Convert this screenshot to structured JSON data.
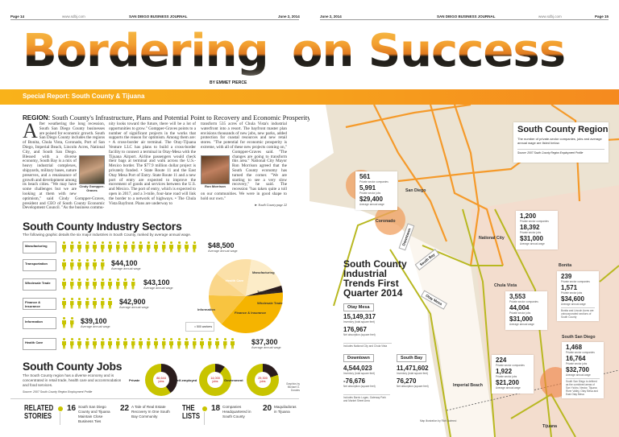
{
  "header_left": {
    "page": "Page 14",
    "url": "www.sdbj.com",
    "journal": "SAN DIEGO BUSINESS JOURNAL",
    "date": "June 2, 2014"
  },
  "header_right": {
    "date": "June 2, 2014",
    "journal": "SAN DIEGO BUSINESS JOURNAL",
    "url": "www.sdbj.com",
    "page": "Page 15"
  },
  "title_left": "Bordering",
  "title_right": "on Success",
  "byline": "BY EMMET PIERCE",
  "band": "Special Report: South County & Tijuana",
  "region": {
    "label": "REGION:",
    "text": "South County's Infrastructure, Plans and Potential Point to Recovery and Economic Prosperity"
  },
  "article": {
    "dropcap": "A",
    "col1": "fter weathering the long recession, South San Diego County businesses are poised for economic growth. South San Diego County includes the regions of Bonita, Chula Vista, Coronado, Port of San Diego, Imperial Beach, Lincoln Acres, National City, and South San Diego. Blessed with a diverse economy, South Bay is a mix of heavy industrial complexes, shipyards, military bases, nature preserves, and a renaissance of growth and development among its beach cities. \"We may have some challenges but we are looking at them with new optimism,\" said Cindy Gompper-Graves, president and CEO of South County Economic Development Council. \"As the business commu-",
    "col2": "nity looks toward the future, there will be a lot of opportunities to grow.\" Gompper-Graves points to a number of significant projects in the works that supports the reason for optimism. Among them are: • A cross-border air terminal. The Otay-Tijuana Venture LLC has plans to build a cross-border facility to connect a terminal in Otay-Mesa with the Tijuana Airport. Airline passengers would check their bags at terminal and walk across the U.S.-Mexico border. The $77.9 million dollar project is privately funded. • State Route 11 and the East Otay Mesa Port of Entry. State Route 11 and a new port of entry are expected to improve the movement of goods and services between the U.S. and Mexico. The port of entry, which is expected to open in 2017, and a 3-mile, four-lane road will link the border to a network of highways. • The Chula Vista Bayfront. Plans are underway to",
    "col3": "transform 535 acres of Chula Vista's industrial waterfront into a resort. The bayfront master plan envisions thousands of new jobs, new parks, added protection for coastal resources and new retail stores. \"The potential for economic prosperity is extreme, with all of these new projects coming on,\" Gompper-Graves said. \"The changes are going to transform this area.\" National City Mayor Ron Morrison agreed that the South County economy has turned the corner. \"We are starting to see a very slow recovery,\" he said. The recession \"has taken quite a toll on our communities. We were in good shape to hold our own.\"",
    "photo1_caption": "Cindy Gompper-Graves",
    "photo2_caption": "Ron Morrison",
    "jump": "South County page 22"
  },
  "sectors": {
    "title": "South County Industry Sectors",
    "subtitle": "The following graphic details the six major industries in South County, ranked by average annual wage.",
    "wage_label": "Average annual wage",
    "legend": "= 500 workers",
    "items": [
      {
        "name": "Manufacturing",
        "wage": "$48,500",
        "icons": 18
      },
      {
        "name": "Transportation",
        "wage": "$44,100",
        "icons": 6
      },
      {
        "name": "Wholesale Trade",
        "wage": "$43,100",
        "icons": 10
      },
      {
        "name": "Finance & Insurance",
        "wage": "$42,900",
        "icons": 7
      },
      {
        "name": "Information",
        "wage": "$39,100",
        "icons": 2
      },
      {
        "name": "Health Care",
        "wage": "$37,300",
        "icons": 23
      }
    ],
    "pie": [
      {
        "name": "Health Care",
        "pct": 38,
        "color": "#f5b400"
      },
      {
        "name": "Manufacturing",
        "pct": 14,
        "color": "#f8c440"
      },
      {
        "name": "Transportation",
        "pct": 10,
        "color": "#fad68a"
      },
      {
        "name": "Wholesale Trade",
        "pct": 17,
        "color": "#fbe0a8"
      },
      {
        "name": "Finance & Insurance",
        "pct": 18,
        "color": "#fcecc8"
      },
      {
        "name": "Information",
        "pct": 3,
        "color": "#2a1c1c"
      }
    ]
  },
  "jobs": {
    "title": "South County Jobs",
    "text": "The South County region has a diverse economy and is concentrated in retail trade, health care and accommodation and food services.",
    "source": "Source: 2007 South County Region Employment Profile",
    "donuts": [
      {
        "label": "Private",
        "value": "86,644",
        "unit": "jobs",
        "dark": 40
      },
      {
        "label": "Self-employed",
        "value": "14,000",
        "unit": "jobs",
        "dark": 10
      },
      {
        "label": "Government",
        "value": "29,300",
        "unit": "jobs",
        "dark": 20
      }
    ],
    "credit": "Graphics by Michael G. Dorales"
  },
  "related": {
    "title": "RELATED STORIES",
    "items": [
      {
        "page": "16",
        "text": "South San Diego County and Tijuana Maintain Close Business Ties"
      },
      {
        "page": "22",
        "text": "A Tale of Real Estate Recovery In One South Bay Community"
      }
    ]
  },
  "lists": {
    "title": "THE LISTS",
    "items": [
      {
        "page": "18",
        "text": "Companies Headquartered in South County"
      },
      {
        "page": "20",
        "text": "Maquiladoras in Tijuana"
      }
    ]
  },
  "map": {
    "title": "South County Region",
    "desc": "The number of private-sector companies, jobs and average annual wage are listed below.",
    "source": "Source: 2007 South County Region Employment Profile",
    "lbl_co": "Private sector companies",
    "lbl_jobs": "Private sector jobs",
    "lbl_wage": "Average annual wage",
    "san_diego": {
      "name": "San Diego",
      "companies": "561",
      "jobs": "5,991",
      "wage": "$29,400"
    },
    "national_city": {
      "name": "National City",
      "companies": "1,200",
      "jobs": "18,392",
      "wage": "$31,000"
    },
    "bonita": {
      "name": "Bonita",
      "companies": "239",
      "jobs": "1,571",
      "wage": "$34,600",
      "note": "Bonita and Lincoln Acres are unincorporated sections of South County"
    },
    "chula_vista": {
      "name": "Chula Vista",
      "companies": "3,553",
      "jobs": "44,004",
      "wage": "$31,000"
    },
    "south_san_diego": {
      "name": "South San Diego",
      "companies": "1,468",
      "jobs": "16,764",
      "wage": "$32,700",
      "note": "South San Diego is defined as the combined areas of San Ysidro, Nestor, Tijuana River Valley, Otay Mesa and East Otay Mesa"
    },
    "imperial_beach": {
      "name": "Imperial Beach",
      "companies": "224",
      "jobs": "1,922",
      "wage": "$21,200"
    },
    "coronado": "Coronado",
    "tijuana": "Tijuana",
    "downtown_tag": "Downtown",
    "southbay_tag": "South Bay",
    "otay_tag": "Otay Mesa",
    "credit": "Map illustration by Rich Dalmeci"
  },
  "trends": {
    "title": "South County Industrial Trends First Quarter 2014",
    "inv": "Inventory (total square feet)",
    "abs": "Net absorption (square feet)",
    "otay": {
      "name": "Otay Mesa",
      "inventory": "15,149,317",
      "absorption": "176,967",
      "note": "Includes National City and Chula Vista"
    },
    "downtown": {
      "name": "Downtown",
      "inventory": "4,544,023",
      "absorption": "-76,676",
      "note": "Includes Barrio Logan, Gateway Park and Market Street Area"
    },
    "southbay": {
      "name": "South Bay",
      "inventory": "11,471,602",
      "absorption": "76,270"
    }
  }
}
